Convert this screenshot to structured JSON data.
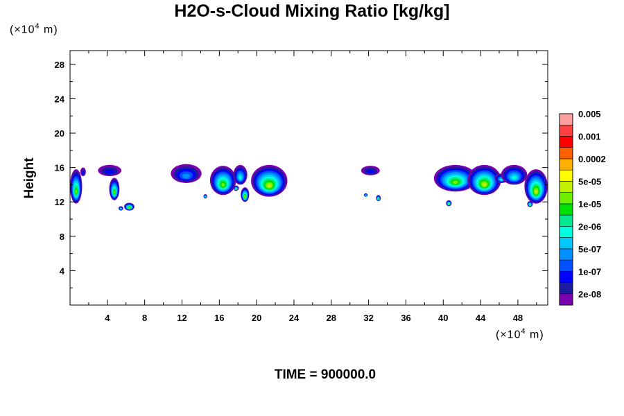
{
  "chart_data": {
    "type": "heatmap",
    "title": "H2O-s-Cloud Mixing Ratio [kg/kg]",
    "ylabel": "Height",
    "xlabel": "",
    "x_unit": {
      "prefix": "(×10",
      "exp": "4",
      "suffix": " m)"
    },
    "y_unit": {
      "prefix": "(×10",
      "exp": "4",
      "suffix": " m)"
    },
    "xlim": [
      0,
      51.2
    ],
    "ylim": [
      0,
      29.6
    ],
    "x_ticks": [
      4,
      8,
      12,
      16,
      20,
      24,
      28,
      32,
      36,
      40,
      44,
      48
    ],
    "y_ticks": [
      4,
      8,
      12,
      16,
      20,
      24,
      28
    ],
    "footer": "TIME = 900000.0",
    "colorbar": {
      "colors": [
        "#7b00b0",
        "#1c1ca0",
        "#0000ff",
        "#0050ff",
        "#0090ff",
        "#00c8ff",
        "#00ffdc",
        "#00e890",
        "#00e000",
        "#70f000",
        "#c0f000",
        "#ffff00",
        "#ffb000",
        "#ff6000",
        "#ff0000",
        "#ff4040",
        "#ffa0a0"
      ],
      "labels": [
        "2e-08",
        "1e-07",
        "5e-07",
        "2e-06",
        "1e-05",
        "5e-05",
        "0.0002",
        "0.001",
        "0.005"
      ]
    },
    "regions": [
      {
        "x": [
          0,
          1.3
        ],
        "y": [
          11.8,
          15.8
        ],
        "peak": 9
      },
      {
        "x": [
          1.1,
          1.7
        ],
        "y": [
          15.0,
          16.0
        ],
        "peak": 2
      },
      {
        "x": [
          3.0,
          5.5
        ],
        "y": [
          15.0,
          16.3
        ],
        "peak": 2
      },
      {
        "x": [
          4.2,
          5.3
        ],
        "y": [
          12.2,
          14.8
        ],
        "peak": 9
      },
      {
        "x": [
          5.2,
          5.7
        ],
        "y": [
          11.0,
          11.5
        ],
        "peak": 7
      },
      {
        "x": [
          5.8,
          6.9
        ],
        "y": [
          11.0,
          11.9
        ],
        "peak": 10
      },
      {
        "x": [
          10.8,
          14.1
        ],
        "y": [
          14.2,
          16.4
        ],
        "peak": 4
      },
      {
        "x": [
          14.3,
          14.7
        ],
        "y": [
          12.4,
          12.9
        ],
        "peak": 8
      },
      {
        "x": [
          15.0,
          17.8
        ],
        "y": [
          12.8,
          16.2
        ],
        "peak": 9
      },
      {
        "x": [
          17.5,
          19.0
        ],
        "y": [
          14.0,
          16.3
        ],
        "peak": 6
      },
      {
        "x": [
          17.5,
          18.1
        ],
        "y": [
          13.3,
          13.9
        ],
        "peak": 8
      },
      {
        "x": [
          18.3,
          19.2
        ],
        "y": [
          12.0,
          13.7
        ],
        "peak": 10
      },
      {
        "x": [
          19.4,
          23.3
        ],
        "y": [
          12.6,
          16.3
        ],
        "peak": 10
      },
      {
        "x": [
          31.2,
          33.2
        ],
        "y": [
          15.1,
          16.2
        ],
        "peak": 2
      },
      {
        "x": [
          31.5,
          31.9
        ],
        "y": [
          12.6,
          13.0
        ],
        "peak": 7
      },
      {
        "x": [
          32.8,
          33.3
        ],
        "y": [
          12.1,
          12.8
        ],
        "peak": 9
      },
      {
        "x": [
          39.0,
          43.6
        ],
        "y": [
          13.2,
          16.3
        ],
        "peak": 9
      },
      {
        "x": [
          40.3,
          40.9
        ],
        "y": [
          11.5,
          12.2
        ],
        "peak": 10
      },
      {
        "x": [
          42.6,
          46.2
        ],
        "y": [
          12.8,
          16.3
        ],
        "peak": 10
      },
      {
        "x": [
          45.5,
          47.0
        ],
        "y": [
          14.2,
          15.3
        ],
        "peak": 6
      },
      {
        "x": [
          46.2,
          49.0
        ],
        "y": [
          14.0,
          16.3
        ],
        "peak": 6
      },
      {
        "x": [
          48.7,
          51.2
        ],
        "y": [
          11.8,
          15.8
        ],
        "peak": 10
      },
      {
        "x": [
          49.0,
          49.6
        ],
        "y": [
          11.4,
          12.1
        ],
        "peak": 9
      }
    ]
  }
}
